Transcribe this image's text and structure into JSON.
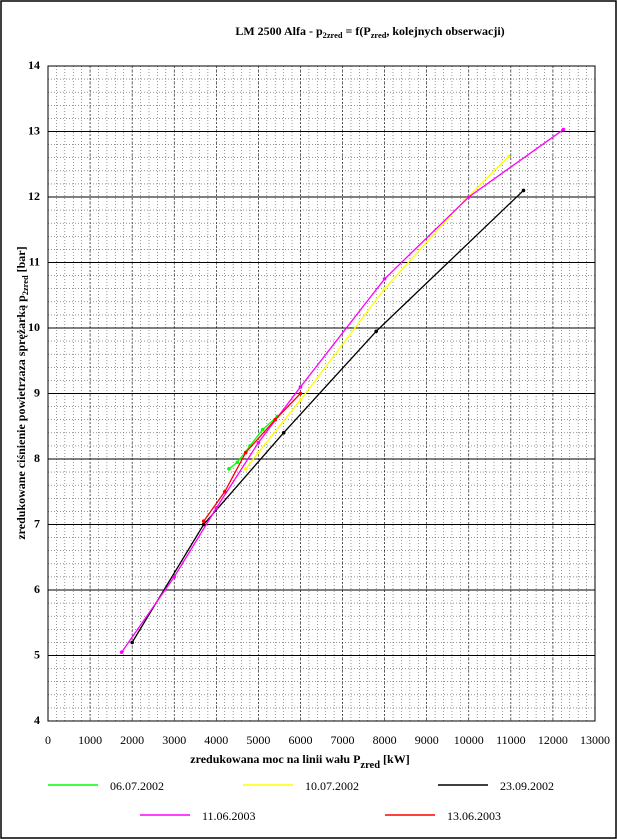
{
  "chart_data": {
    "type": "line",
    "title": [
      "LM 2500 Alfa - p",
      "2zred",
      " = f(P",
      "zred",
      ", kolejnych obserwacji)"
    ],
    "x_label": [
      "zredukowana moc na linii wału P",
      "zred",
      " [kW]"
    ],
    "y_label": [
      "zredukowane ciśnienie powietrzaza sprężarką  p",
      "2zred",
      " [bar]"
    ],
    "xlim": [
      0,
      13000
    ],
    "xticks": [
      0,
      1000,
      2000,
      3000,
      4000,
      5000,
      6000,
      7000,
      8000,
      9000,
      10000,
      11000,
      12000,
      13000
    ],
    "ylim": [
      4,
      14
    ],
    "yticks": [
      4,
      5,
      6,
      7,
      8,
      9,
      10,
      11,
      12,
      13,
      14
    ],
    "grid": true,
    "minor_grid": {
      "x": 200,
      "y": 0.2
    },
    "legend": "bottom",
    "series": [
      {
        "name": "06.07.2002",
        "color": "#00ff00",
        "x": [
          4300,
          4500,
          4800,
          5100,
          5450
        ],
        "values": [
          7.85,
          7.95,
          8.2,
          8.45,
          8.65
        ]
      },
      {
        "name": "10.07.2002",
        "color": "#ffff00",
        "x": [
          4700,
          5000,
          6000,
          8000,
          9900,
          10950
        ],
        "values": [
          7.85,
          8.1,
          8.9,
          10.6,
          11.95,
          12.62
        ]
      },
      {
        "name": "23.09.2002",
        "color": "#000000",
        "x": [
          2000,
          3700,
          5600,
          7800,
          11300
        ],
        "values": [
          5.2,
          7.0,
          8.4,
          9.95,
          12.1
        ]
      },
      {
        "name": "11.06.2003",
        "color": "#ff00ff",
        "x": [
          1750,
          3000,
          4000,
          5000,
          6000,
          8000,
          10000,
          12250
        ],
        "values": [
          5.05,
          6.2,
          7.25,
          8.25,
          9.1,
          10.75,
          12.0,
          13.03
        ]
      },
      {
        "name": "13.06.2003",
        "color": "#ff0000",
        "x": [
          3700,
          4200,
          4700,
          5400,
          6000
        ],
        "values": [
          7.05,
          7.5,
          8.1,
          8.6,
          9.0
        ]
      }
    ]
  }
}
